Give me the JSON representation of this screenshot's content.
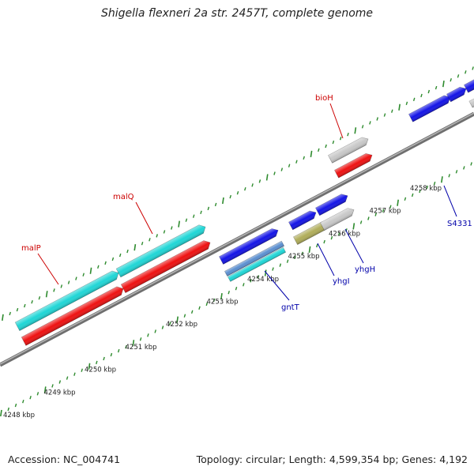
{
  "title": "Shigella flexneri 2a str. 2457T, complete genome",
  "footer": {
    "accession": "Accession: NC_004741",
    "summary": "Topology: circular; Length: 4,599,354 bp; Genes: 4,192"
  },
  "colors": {
    "backbone": "#8c8c8c",
    "ticks": "#2e8b2e",
    "gene_label_red": "#cc0000",
    "gene_label_blue": "#0000aa",
    "cyan": "#1fd6d6",
    "red": "#ee1111",
    "blue": "#1414e6",
    "gray": "#c8c8c8",
    "olive": "#b0ad5a",
    "steel": "#5b8fd0"
  },
  "kbp_labels": [
    "4248 kbp",
    "4249 kbp",
    "4250 kbp",
    "4251 kbp",
    "4252 kbp",
    "4253 kbp",
    "4254 kbp",
    "4255 kbp",
    "4256 kbp",
    "4257 kbp",
    "4258 kbp"
  ],
  "genes": [
    {
      "name": "malP",
      "label": "malP",
      "side": "top"
    },
    {
      "name": "malQ",
      "label": "malQ",
      "side": "top"
    },
    {
      "name": "bioH",
      "label": "bioH",
      "side": "top"
    },
    {
      "name": "gntT",
      "label": "gntT",
      "side": "bottom"
    },
    {
      "name": "yhgI",
      "label": "yhgI",
      "side": "bottom"
    },
    {
      "name": "yhgH",
      "label": "yhgH",
      "side": "bottom"
    },
    {
      "name": "S4331",
      "label": "S4331",
      "side": "bottom"
    }
  ]
}
